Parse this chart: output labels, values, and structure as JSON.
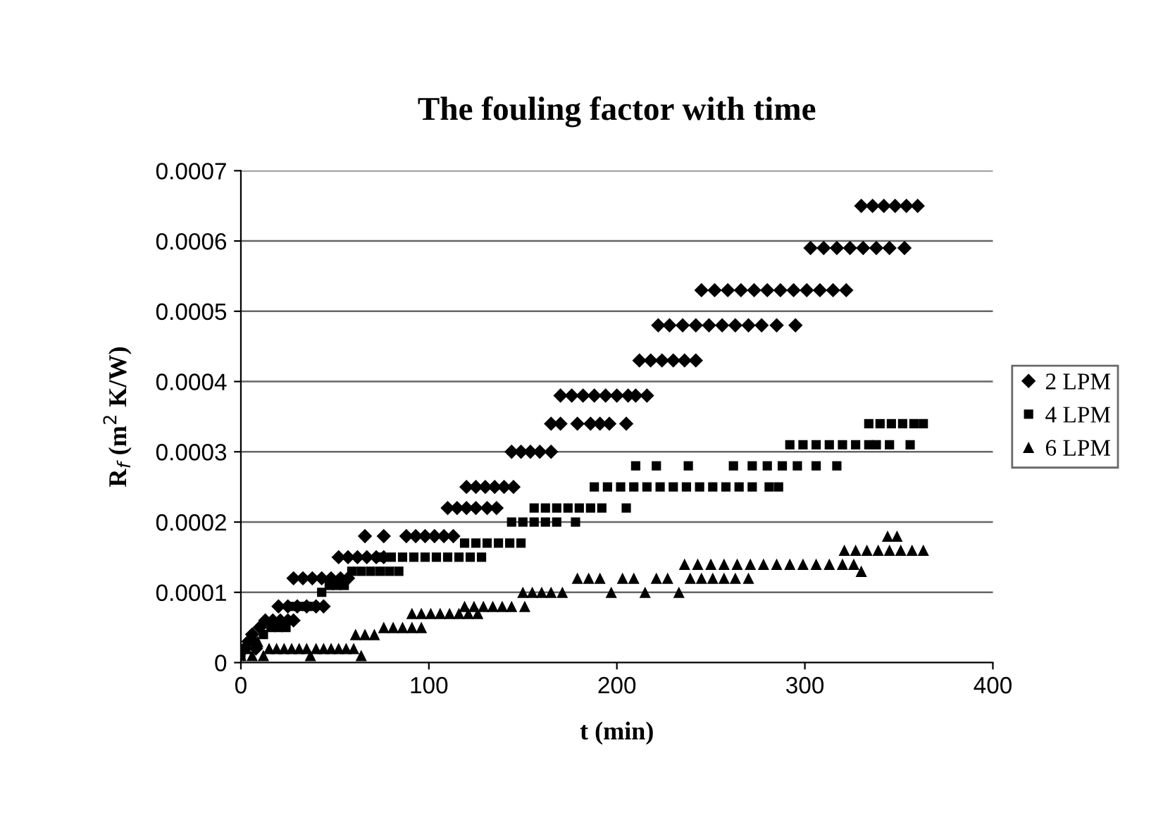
{
  "chart_data": {
    "type": "scatter",
    "title": "The fouling factor with time",
    "xlabel": "t (min)",
    "ylabel": "R$_{f}$ (m$^{2}$ K/W)",
    "xlim": [
      0,
      400
    ],
    "xticks": [
      0,
      100,
      200,
      300,
      400
    ],
    "ylim": [
      0,
      0.0007
    ],
    "yticks": [
      {
        "value": 0,
        "label": "0"
      },
      {
        "value": 0.0001,
        "label": "0.0001"
      },
      {
        "value": 0.0002,
        "label": "0.0002"
      },
      {
        "value": 0.0003,
        "label": "0.0003"
      },
      {
        "value": 0.0004,
        "label": "0.0004"
      },
      {
        "value": 0.0005,
        "label": "0.0005"
      },
      {
        "value": 0.0006,
        "label": "0.0006"
      },
      {
        "value": 0.0007,
        "label": "0.0007"
      }
    ],
    "grid": "y",
    "legend": "right",
    "series": [
      {
        "name": "2 LPM",
        "color": "#000000",
        "marker": "diamond",
        "x": [
          2,
          4,
          6,
          8,
          10,
          13,
          17,
          21,
          25,
          28,
          20,
          25,
          30,
          35,
          40,
          44,
          28,
          33,
          38,
          43,
          48,
          53,
          57,
          52,
          57,
          62,
          67,
          72,
          76,
          66,
          76,
          88,
          93,
          98,
          103,
          108,
          113,
          110,
          115,
          120,
          125,
          131,
          136,
          120,
          125,
          130,
          135,
          140,
          145,
          144,
          149,
          154,
          159,
          165,
          165,
          170,
          179,
          186,
          191,
          196,
          205,
          170,
          176,
          182,
          188,
          194,
          200,
          206,
          210,
          216,
          212,
          218,
          224,
          230,
          236,
          242,
          222,
          228,
          235,
          242,
          249,
          256,
          263,
          270,
          277,
          285,
          295,
          245,
          252,
          259,
          266,
          273,
          280,
          287,
          294,
          301,
          308,
          315,
          322,
          303,
          310,
          317,
          324,
          331,
          338,
          345,
          353,
          330,
          336,
          342,
          348,
          354,
          360
        ],
        "values": [
          2e-05,
          3e-05,
          4e-05,
          2e-05,
          5e-05,
          6e-05,
          6e-05,
          6e-05,
          6e-05,
          6e-05,
          8e-05,
          8e-05,
          8e-05,
          8e-05,
          8e-05,
          8e-05,
          0.00012,
          0.00012,
          0.00012,
          0.00012,
          0.00012,
          0.00012,
          0.00012,
          0.00015,
          0.00015,
          0.00015,
          0.00015,
          0.00015,
          0.00015,
          0.00018,
          0.00018,
          0.00018,
          0.00018,
          0.00018,
          0.00018,
          0.00018,
          0.00018,
          0.00022,
          0.00022,
          0.00022,
          0.00022,
          0.00022,
          0.00022,
          0.00025,
          0.00025,
          0.00025,
          0.00025,
          0.00025,
          0.00025,
          0.0003,
          0.0003,
          0.0003,
          0.0003,
          0.0003,
          0.00034,
          0.00034,
          0.00034,
          0.00034,
          0.00034,
          0.00034,
          0.00034,
          0.00038,
          0.00038,
          0.00038,
          0.00038,
          0.00038,
          0.00038,
          0.00038,
          0.00038,
          0.00038,
          0.00043,
          0.00043,
          0.00043,
          0.00043,
          0.00043,
          0.00043,
          0.00048,
          0.00048,
          0.00048,
          0.00048,
          0.00048,
          0.00048,
          0.00048,
          0.00048,
          0.00048,
          0.00048,
          0.00048,
          0.00053,
          0.00053,
          0.00053,
          0.00053,
          0.00053,
          0.00053,
          0.00053,
          0.00053,
          0.00053,
          0.00053,
          0.00053,
          0.00053,
          0.00059,
          0.00059,
          0.00059,
          0.00059,
          0.00059,
          0.00059,
          0.00059,
          0.00059,
          0.00065,
          0.00065,
          0.00065,
          0.00065,
          0.00065,
          0.00065
        ]
      },
      {
        "name": "4 LPM",
        "color": "#000000",
        "marker": "square",
        "x": [
          0,
          6,
          12,
          16,
          20,
          24,
          27,
          31,
          35,
          39,
          43,
          47,
          51,
          55,
          59,
          64,
          69,
          74,
          79,
          84,
          74,
          80,
          86,
          92,
          98,
          104,
          110,
          116,
          122,
          128,
          119,
          125,
          131,
          137,
          143,
          149,
          144,
          150,
          156,
          162,
          168,
          178,
          156,
          162,
          168,
          174,
          180,
          186,
          192,
          205,
          188,
          195,
          202,
          209,
          216,
          223,
          230,
          237,
          244,
          251,
          258,
          265,
          272,
          281,
          286,
          210,
          221,
          238,
          262,
          272,
          280,
          288,
          296,
          306,
          317,
          292,
          299,
          306,
          313,
          320,
          327,
          334,
          338,
          345,
          356,
          334,
          340,
          346,
          352,
          358,
          363
        ],
        "values": [
          1e-05,
          3e-05,
          4e-05,
          5e-05,
          5e-05,
          5e-05,
          8e-05,
          8e-05,
          8e-05,
          8e-05,
          0.0001,
          0.00011,
          0.00011,
          0.00011,
          0.00013,
          0.00013,
          0.00013,
          0.00013,
          0.00013,
          0.00013,
          0.00015,
          0.00015,
          0.00015,
          0.00015,
          0.00015,
          0.00015,
          0.00015,
          0.00015,
          0.00015,
          0.00015,
          0.00017,
          0.00017,
          0.00017,
          0.00017,
          0.00017,
          0.00017,
          0.0002,
          0.0002,
          0.0002,
          0.0002,
          0.0002,
          0.0002,
          0.00022,
          0.00022,
          0.00022,
          0.00022,
          0.00022,
          0.00022,
          0.00022,
          0.00022,
          0.00025,
          0.00025,
          0.00025,
          0.00025,
          0.00025,
          0.00025,
          0.00025,
          0.00025,
          0.00025,
          0.00025,
          0.00025,
          0.00025,
          0.00025,
          0.00025,
          0.00025,
          0.00028,
          0.00028,
          0.00028,
          0.00028,
          0.00028,
          0.00028,
          0.00028,
          0.00028,
          0.00028,
          0.00028,
          0.00031,
          0.00031,
          0.00031,
          0.00031,
          0.00031,
          0.00031,
          0.00031,
          0.00031,
          0.00031,
          0.00031,
          0.00034,
          0.00034,
          0.00034,
          0.00034,
          0.00034,
          0.00034
        ]
      },
      {
        "name": "6 LPM",
        "color": "#000000",
        "marker": "triangle",
        "x": [
          0,
          3,
          6,
          9,
          12,
          15,
          19,
          23,
          27,
          31,
          35,
          37,
          40,
          44,
          48,
          52,
          56,
          60,
          64,
          61,
          66,
          71,
          76,
          81,
          86,
          91,
          96,
          91,
          96,
          101,
          106,
          111,
          116,
          121,
          126,
          119,
          124,
          129,
          134,
          139,
          144,
          151,
          150,
          155,
          160,
          165,
          171,
          179,
          185,
          191,
          197,
          203,
          209,
          215,
          221,
          227,
          233,
          239,
          245,
          251,
          257,
          263,
          270,
          236,
          243,
          250,
          257,
          264,
          271,
          278,
          285,
          292,
          299,
          306,
          313,
          320,
          326,
          330,
          321,
          327,
          333,
          339,
          345,
          351,
          357,
          363,
          344,
          349
        ],
        "values": [
          1e-05,
          2e-05,
          1e-05,
          3e-05,
          1e-05,
          2e-05,
          2e-05,
          2e-05,
          2e-05,
          2e-05,
          2e-05,
          1e-05,
          2e-05,
          2e-05,
          2e-05,
          2e-05,
          2e-05,
          2e-05,
          1e-05,
          4e-05,
          4e-05,
          4e-05,
          5e-05,
          5e-05,
          5e-05,
          5e-05,
          5e-05,
          7e-05,
          7e-05,
          7e-05,
          7e-05,
          7e-05,
          7e-05,
          7e-05,
          7e-05,
          8e-05,
          8e-05,
          8e-05,
          8e-05,
          8e-05,
          8e-05,
          8e-05,
          0.0001,
          0.0001,
          0.0001,
          0.0001,
          0.0001,
          0.00012,
          0.00012,
          0.00012,
          0.0001,
          0.00012,
          0.00012,
          0.0001,
          0.00012,
          0.00012,
          0.0001,
          0.00012,
          0.00012,
          0.00012,
          0.00012,
          0.00012,
          0.00012,
          0.00014,
          0.00014,
          0.00014,
          0.00014,
          0.00014,
          0.00014,
          0.00014,
          0.00014,
          0.00014,
          0.00014,
          0.00014,
          0.00014,
          0.00014,
          0.00014,
          0.00013,
          0.00016,
          0.00016,
          0.00016,
          0.00016,
          0.00016,
          0.00016,
          0.00016,
          0.00016,
          0.00018,
          0.00018
        ]
      }
    ]
  }
}
